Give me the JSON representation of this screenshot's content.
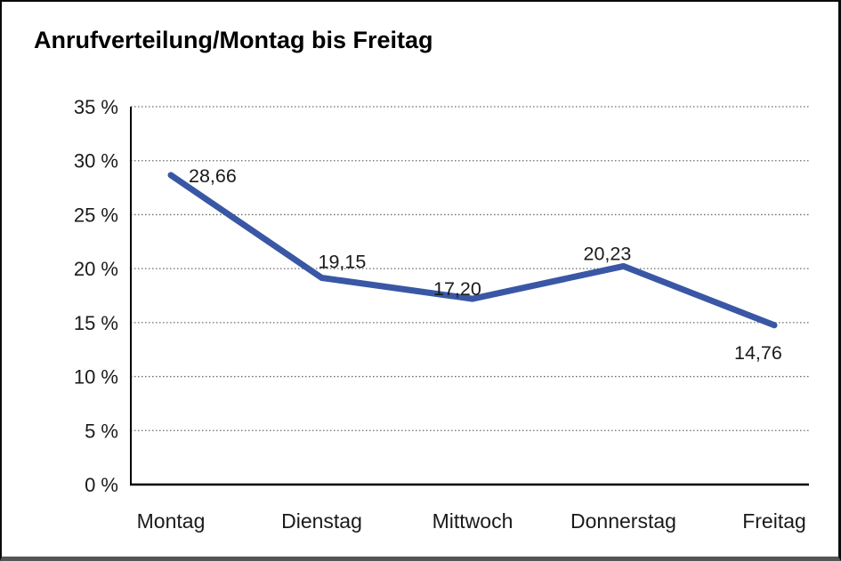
{
  "page": {
    "title": "Anrufverteilung/Montag bis Freitag"
  },
  "chart_data": {
    "type": "line",
    "title": "Anrufverteilung/Montag bis Freitag",
    "categories": [
      "Montag",
      "Dienstag",
      "Mittwoch",
      "Donnerstag",
      "Freitag"
    ],
    "series": [
      {
        "name": "Anrufverteilung",
        "values": [
          28.66,
          19.15,
          17.2,
          20.23,
          14.76
        ]
      }
    ],
    "point_labels": [
      "28,66",
      "19,15",
      "17,20",
      "20,23",
      "14,76"
    ],
    "xlabel": "",
    "ylabel": "",
    "ylim": [
      0,
      35
    ],
    "y_ticks": [
      {
        "value": 0,
        "label": "0 %"
      },
      {
        "value": 5,
        "label": "5 %"
      },
      {
        "value": 10,
        "label": "10 %"
      },
      {
        "value": 15,
        "label": "15 %"
      },
      {
        "value": 20,
        "label": "20 %"
      },
      {
        "value": 25,
        "label": "25 %"
      },
      {
        "value": 30,
        "label": "30 %"
      },
      {
        "value": 35,
        "label": "35 %"
      }
    ],
    "grid": "horizontal-dotted",
    "legend_position": "none",
    "colors": {
      "line": "#3a57a6",
      "axis": "#000000",
      "gridline": "#6b6b6b",
      "text": "#1a1a1a"
    }
  }
}
